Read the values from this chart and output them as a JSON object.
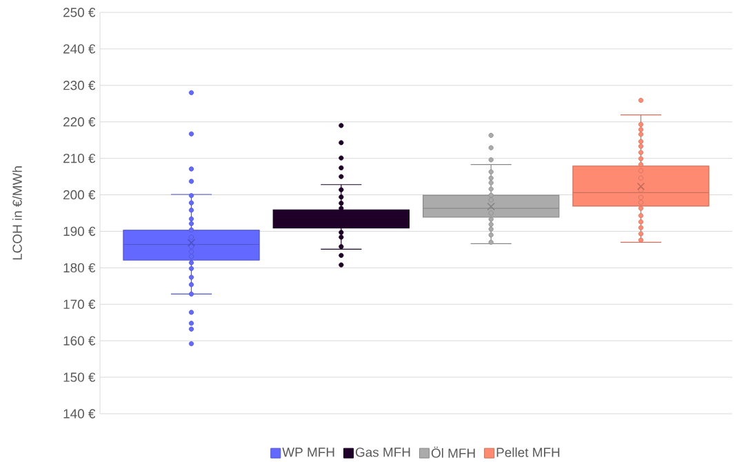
{
  "chart_data": {
    "type": "box",
    "ylabel": "LCOH in €/MWh",
    "categories": [
      null
    ],
    "ylim": [
      140,
      250
    ],
    "yticks": [
      {
        "value": 140,
        "label": "140 €"
      },
      {
        "value": 150,
        "label": "150 €"
      },
      {
        "value": 160,
        "label": "160 €"
      },
      {
        "value": 170,
        "label": "170 €"
      },
      {
        "value": 180,
        "label": "180 €"
      },
      {
        "value": 190,
        "label": "190 €"
      },
      {
        "value": 200,
        "label": "200 €"
      },
      {
        "value": 210,
        "label": "210 €"
      },
      {
        "value": 220,
        "label": "220 €"
      },
      {
        "value": 230,
        "label": "230 €"
      },
      {
        "value": 240,
        "label": "240 €"
      },
      {
        "value": 250,
        "label": "250 €"
      }
    ],
    "grid": "y",
    "legend": "bottom",
    "marker": "circle",
    "series": [
      {
        "name": "WP MFH",
        "color": "#6369ff",
        "boxes": [
          {
            "low": 172.8,
            "q1": 182.1,
            "median": 186.4,
            "q3": 190.3,
            "high": 200.1,
            "mean": 186.9,
            "outliers": [
              228.0,
              216.7,
              207.1,
              203.7,
              199.8,
              197.8,
              195.8,
              193.4,
              192.1,
              190.4,
              188.4,
              185.8,
              184.4,
              183.1,
              181.4,
              179.8,
              177.4,
              175.4,
              172.8,
              167.8,
              164.8,
              163.2,
              159.2
            ]
          }
        ]
      },
      {
        "name": "Gas MFH",
        "color": "#1e0028",
        "boxes": [
          {
            "low": 185.1,
            "q1": 190.9,
            "median": 193.3,
            "q3": 195.9,
            "high": 202.8,
            "outliers": [
              219.0,
              214.3,
              210.1,
              207.4,
              205.0,
              201.4,
              199.4,
              197.7,
              196.3,
              189.7,
              188.4,
              185.8,
              183.4,
              180.8
            ]
          }
        ]
      },
      {
        "name": "Öl MFH",
        "color": "#ababab",
        "boxes": [
          {
            "low": 186.6,
            "q1": 193.9,
            "median": 196.3,
            "q3": 199.9,
            "high": 208.3,
            "mean": 196.8,
            "outliers": [
              216.3,
              212.9,
              209.6,
              206.3,
              204.6,
              203.3,
              201.6,
              199.9,
              198.6,
              195.0,
              193.3,
              191.9,
              190.6,
              189.0,
              187.0
            ]
          }
        ]
      },
      {
        "name": "Pellet MFH",
        "color": "#ff8a72",
        "boxes": [
          {
            "low": 187.0,
            "q1": 196.9,
            "median": 200.6,
            "q3": 207.9,
            "high": 221.9,
            "mean": 202.3,
            "outliers": [
              225.9,
              219.3,
              217.9,
              216.6,
              214.6,
              213.3,
              211.6,
              209.9,
              208.3,
              206.6,
              204.6,
              201.3,
              199.3,
              197.9,
              196.3,
              194.3,
              192.6,
              191.0,
              189.3,
              187.6
            ]
          }
        ]
      }
    ]
  }
}
